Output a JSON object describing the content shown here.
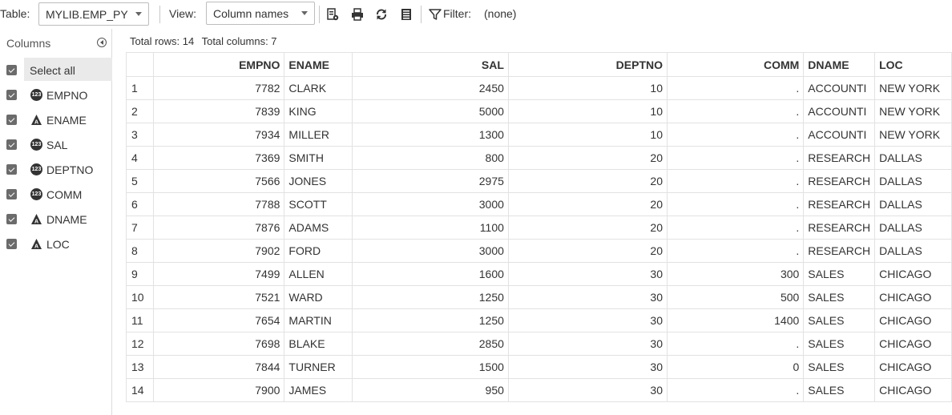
{
  "toolbar": {
    "table_label": "Table:",
    "table_value": "MYLIB.EMP_PY",
    "view_label": "View:",
    "view_value": "Column names",
    "filter_label": "Filter:",
    "filter_value": "(none)",
    "icons": [
      "column-properties-icon",
      "print-icon",
      "refresh-icon",
      "view-options-icon",
      "filter-icon"
    ]
  },
  "sidebar": {
    "title": "Columns",
    "select_all": "Select all",
    "columns": [
      {
        "name": "EMPNO",
        "type": "numeric"
      },
      {
        "name": "ENAME",
        "type": "character"
      },
      {
        "name": "SAL",
        "type": "numeric"
      },
      {
        "name": "DEPTNO",
        "type": "numeric"
      },
      {
        "name": "COMM",
        "type": "numeric"
      },
      {
        "name": "DNAME",
        "type": "character"
      },
      {
        "name": "LOC",
        "type": "character"
      }
    ]
  },
  "info": {
    "rows": "Total rows: 14",
    "columns": "Total columns: 7"
  },
  "grid": {
    "headers": [
      "",
      "EMPNO",
      "ENAME",
      "SAL",
      "DEPTNO",
      "COMM",
      "DNAME",
      "LOC"
    ],
    "rows": [
      [
        "1",
        "7782",
        "CLARK",
        "2450",
        "10",
        ".",
        "ACCOUNTI",
        "NEW YORK"
      ],
      [
        "2",
        "7839",
        "KING",
        "5000",
        "10",
        ".",
        "ACCOUNTI",
        "NEW YORK"
      ],
      [
        "3",
        "7934",
        "MILLER",
        "1300",
        "10",
        ".",
        "ACCOUNTI",
        "NEW YORK"
      ],
      [
        "4",
        "7369",
        "SMITH",
        "800",
        "20",
        ".",
        "RESEARCH",
        "DALLAS"
      ],
      [
        "5",
        "7566",
        "JONES",
        "2975",
        "20",
        ".",
        "RESEARCH",
        "DALLAS"
      ],
      [
        "6",
        "7788",
        "SCOTT",
        "3000",
        "20",
        ".",
        "RESEARCH",
        "DALLAS"
      ],
      [
        "7",
        "7876",
        "ADAMS",
        "1100",
        "20",
        ".",
        "RESEARCH",
        "DALLAS"
      ],
      [
        "8",
        "7902",
        "FORD",
        "3000",
        "20",
        ".",
        "RESEARCH",
        "DALLAS"
      ],
      [
        "9",
        "7499",
        "ALLEN",
        "1600",
        "30",
        "300",
        "SALES",
        "CHICAGO"
      ],
      [
        "10",
        "7521",
        "WARD",
        "1250",
        "30",
        "500",
        "SALES",
        "CHICAGO"
      ],
      [
        "11",
        "7654",
        "MARTIN",
        "1250",
        "30",
        "1400",
        "SALES",
        "CHICAGO"
      ],
      [
        "12",
        "7698",
        "BLAKE",
        "2850",
        "30",
        ".",
        "SALES",
        "CHICAGO"
      ],
      [
        "13",
        "7844",
        "TURNER",
        "1500",
        "30",
        "0",
        "SALES",
        "CHICAGO"
      ],
      [
        "14",
        "7900",
        "JAMES",
        "950",
        "30",
        ".",
        "SALES",
        "CHICAGO"
      ]
    ]
  }
}
